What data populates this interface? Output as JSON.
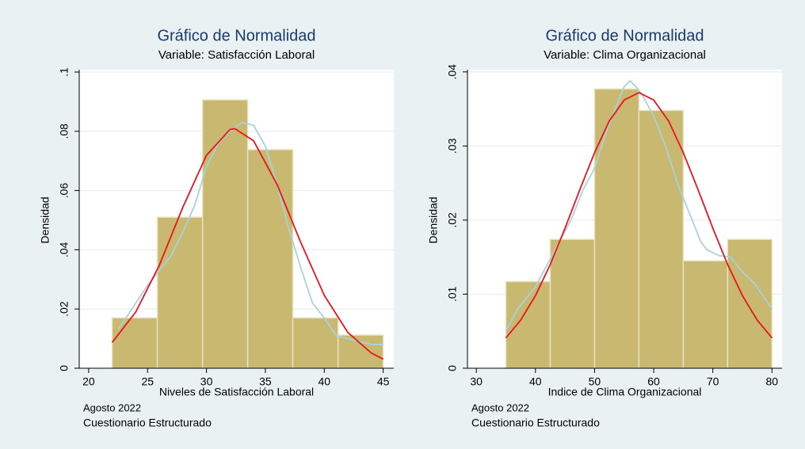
{
  "chart_data": [
    {
      "type": "histogram",
      "title": "Gráfico de Normalidad",
      "subtitle": "Variable: Satisfacción Laboral",
      "xlabel": "Niveles de Satisfacción Laboral",
      "ylabel": "Densidad",
      "notes": [
        "Agosto 2022",
        "Cuestionario Estructurado"
      ],
      "bins": [
        22,
        25.83,
        29.67,
        33.5,
        37.33,
        41.17,
        45
      ],
      "counts": [
        0.017,
        0.051,
        0.0906,
        0.0738,
        0.017,
        0.0112
      ],
      "color": "#c8b870",
      "xlim": [
        19.2,
        45.9
      ],
      "xticks": [
        20,
        25,
        30,
        35,
        40,
        45
      ],
      "ylim": [
        0,
        0.1008
      ],
      "yticks": [
        0,
        {
          "value": 0.02,
          "label": ".02"
        },
        {
          "value": 0.04,
          "label": ".04"
        },
        {
          "value": 0.06,
          "label": ".06"
        },
        {
          "value": 0.08,
          "label": ".08"
        },
        {
          "value": 0.1,
          "label": ".1"
        }
      ],
      "grid": true,
      "lines": [
        {
          "color": "#a9d3dc",
          "x": [
            22.5,
            24,
            25,
            26,
            27,
            28,
            29,
            30,
            31,
            32,
            33,
            34,
            35,
            36,
            37,
            38,
            39,
            40,
            41,
            42,
            43,
            44,
            45
          ],
          "values": [
            0.013,
            0.022,
            0.028,
            0.033,
            0.038,
            0.046,
            0.055,
            0.068,
            0.076,
            0.08,
            0.083,
            0.082,
            0.075,
            0.062,
            0.047,
            0.034,
            0.022,
            0.017,
            0.011,
            0.01,
            0.009,
            0.008,
            0.008
          ]
        },
        {
          "color": "#e8141e",
          "x": [
            22,
            24,
            26,
            28,
            30,
            32,
            32.4,
            34,
            36,
            38,
            40,
            42,
            44,
            45
          ],
          "values": [
            0.0087,
            0.019,
            0.0348,
            0.0544,
            0.0719,
            0.0806,
            0.0809,
            0.0768,
            0.062,
            0.0425,
            0.0246,
            0.0121,
            0.0051,
            0.0031
          ]
        }
      ]
    },
    {
      "type": "histogram",
      "title": "Gráfico de Normalidad",
      "subtitle": "Variable: Clima Organizacional",
      "xlabel": "Indice de Clima Organizacional",
      "ylabel": "Densidad",
      "notes": [
        "Agosto 2022",
        "Cuestionario Estructurado"
      ],
      "bins": [
        35,
        42.5,
        50,
        57.5,
        65,
        72.5,
        80
      ],
      "counts": [
        0.0117,
        0.0174,
        0.0377,
        0.0348,
        0.0145,
        0.0174
      ],
      "color": "#c8b870",
      "xlim": [
        28.5,
        81.7
      ],
      "xticks": [
        30,
        40,
        50,
        60,
        70,
        80
      ],
      "ylim": [
        0,
        0.0403
      ],
      "yticks": [
        0,
        {
          "value": 0.01,
          "label": ".01"
        },
        {
          "value": 0.02,
          "label": ".02"
        },
        {
          "value": 0.03,
          "label": ".03"
        },
        {
          "value": 0.04,
          "label": ".04"
        }
      ],
      "grid": true,
      "lines": [
        {
          "color": "#a9d3dc",
          "x": [
            35,
            37,
            40,
            42,
            44,
            46,
            48,
            50,
            52,
            54,
            55,
            56,
            57,
            58,
            60,
            62,
            64,
            66,
            68,
            69,
            71,
            73,
            75,
            77,
            80
          ],
          "values": [
            0.005,
            0.008,
            0.011,
            0.014,
            0.017,
            0.02,
            0.024,
            0.027,
            0.032,
            0.036,
            0.038,
            0.0388,
            0.038,
            0.037,
            0.034,
            0.03,
            0.025,
            0.021,
            0.017,
            0.016,
            0.0152,
            0.015,
            0.013,
            0.0115,
            0.008
          ]
        },
        {
          "color": "#e8141e",
          "x": [
            35,
            37.5,
            40,
            42.5,
            45,
            47.5,
            50,
            52.5,
            55,
            57.5,
            60,
            62.5,
            65,
            67.5,
            70,
            72.5,
            75,
            77.5,
            80
          ],
          "values": [
            0.0041,
            0.0065,
            0.0098,
            0.014,
            0.0189,
            0.0241,
            0.0291,
            0.0334,
            0.0362,
            0.0372,
            0.0362,
            0.0334,
            0.0291,
            0.0241,
            0.0189,
            0.014,
            0.0098,
            0.0065,
            0.0041
          ]
        }
      ]
    }
  ]
}
